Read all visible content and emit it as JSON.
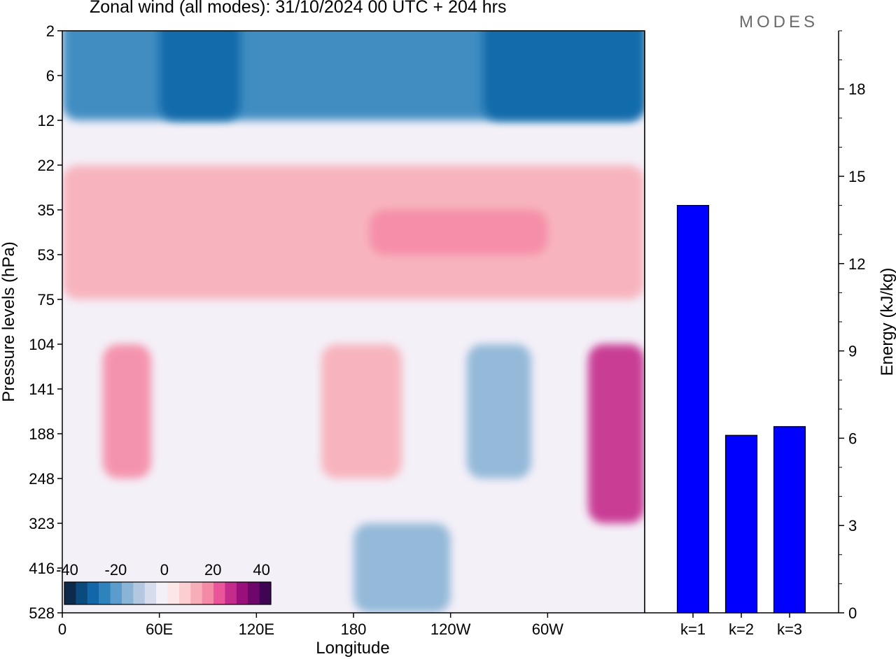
{
  "header": {
    "title": "Zonal wind (all modes):  31/10/2024  00 UTC  + 204 hrs",
    "logo": "MODES"
  },
  "chart_data": [
    {
      "type": "heatmap",
      "title": "Zonal wind (all modes):  31/10/2024  00 UTC  + 204 hrs",
      "xlabel": "Longitude",
      "ylabel": "Pressure levels (hPa)",
      "x_ticks": [
        "0",
        "60E",
        "120E",
        "180",
        "120W",
        "60W"
      ],
      "x_tick_degrees": [
        0,
        60,
        120,
        180,
        240,
        300
      ],
      "x_range_degrees": [
        0,
        360
      ],
      "y_ticks": [
        "2",
        "6",
        "12",
        "22",
        "35",
        "53",
        "75",
        "104",
        "141",
        "188",
        "248",
        "323",
        "416",
        "528"
      ],
      "y_scale": "pressure levels (top = 2 hPa, bottom = 528 hPa)",
      "colorbar": {
        "labels": [
          "-40",
          "-20",
          "0",
          "20",
          "40"
        ],
        "levels": [
          -40,
          -35,
          -30,
          -25,
          -20,
          -15,
          -10,
          -5,
          0,
          5,
          10,
          15,
          20,
          25,
          30,
          35,
          40,
          45
        ],
        "colors": [
          "#0e2a4a",
          "#0b4a7d",
          "#1167a8",
          "#2f83bd",
          "#5a9ccb",
          "#8ab4d6",
          "#b3c7e1",
          "#d6dcec",
          "#f4f0f8",
          "#fde6e6",
          "#fbcfd2",
          "#f8aeb8",
          "#f58aa6",
          "#e9549a",
          "#c52b8b",
          "#9b0f7a",
          "#6e076b",
          "#3f0554"
        ]
      },
      "features": [
        {
          "lon": [
            0,
            360
          ],
          "levels": [
            "2",
            "12"
          ],
          "sign": "easterly",
          "peak": -25
        },
        {
          "lon": [
            60,
            110
          ],
          "levels": [
            "2",
            "12"
          ],
          "sign": "easterly",
          "peak": -30
        },
        {
          "lon": [
            260,
            360
          ],
          "levels": [
            "2",
            "12"
          ],
          "sign": "easterly",
          "peak": -30
        },
        {
          "lon": [
            0,
            360
          ],
          "levels": [
            "22",
            "75"
          ],
          "sign": "westerly",
          "peak": 15
        },
        {
          "lon": [
            190,
            300
          ],
          "levels": [
            "35",
            "53"
          ],
          "sign": "westerly",
          "peak": 20
        },
        {
          "lon": [
            25,
            55
          ],
          "levels": [
            "104",
            "248"
          ],
          "sign": "westerly",
          "peak": 20
        },
        {
          "lon": [
            160,
            210
          ],
          "levels": [
            "104",
            "248"
          ],
          "sign": "westerly",
          "peak": 15
        },
        {
          "lon": [
            325,
            360
          ],
          "levels": [
            "104",
            "323"
          ],
          "sign": "westerly",
          "peak": 30
        },
        {
          "lon": [
            250,
            290
          ],
          "levels": [
            "104",
            "248"
          ],
          "sign": "easterly",
          "peak": -15
        },
        {
          "lon": [
            180,
            240
          ],
          "levels": [
            "323",
            "528"
          ],
          "sign": "easterly",
          "peak": -15
        }
      ]
    },
    {
      "type": "bar",
      "categories": [
        "k=1",
        "k=2",
        "k=3"
      ],
      "values": [
        14.0,
        6.1,
        6.4
      ],
      "ylabel": "Energy (kJ/kg)",
      "ylim": [
        0,
        20
      ],
      "y_ticks": [
        "0",
        "3",
        "6",
        "9",
        "12",
        "15",
        "18"
      ],
      "bar_color": "#0000ff"
    }
  ]
}
